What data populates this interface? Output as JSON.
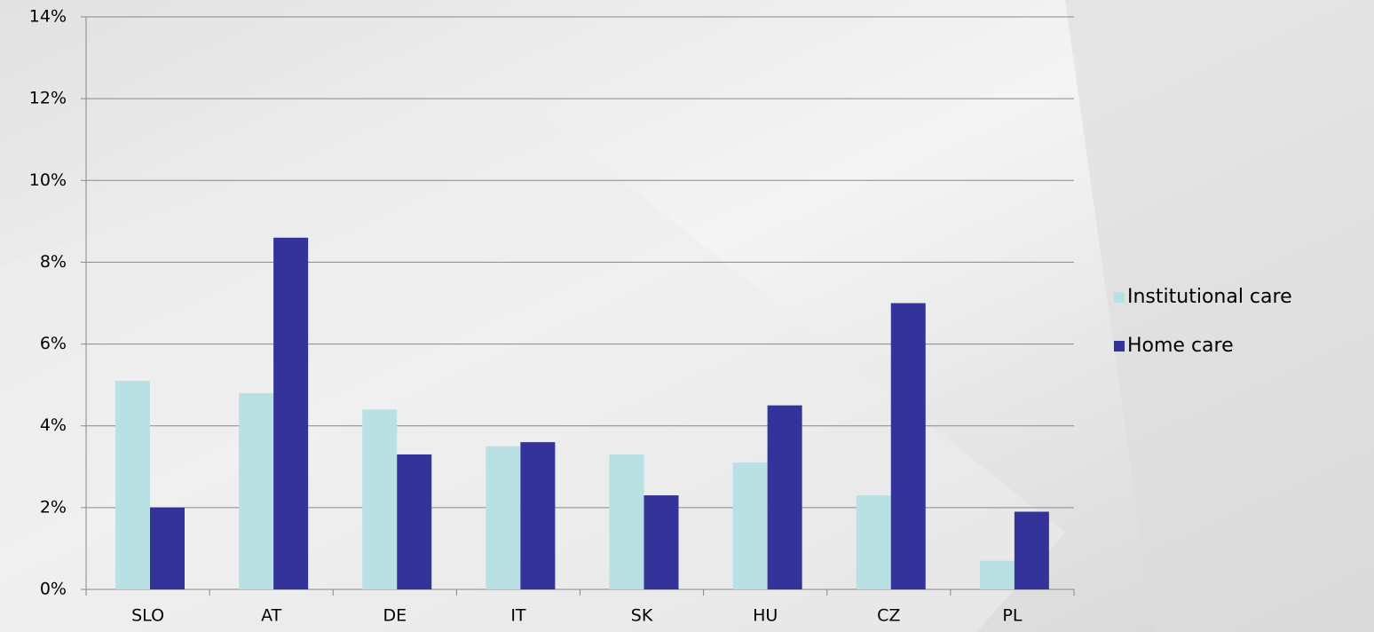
{
  "chart_data": {
    "type": "bar",
    "categories": [
      "SLO",
      "AT",
      "DE",
      "IT",
      "SK",
      "HU",
      "CZ",
      "PL"
    ],
    "series": [
      {
        "name": "Institutional care",
        "color": "#b9e0e3",
        "values": [
          5.1,
          4.8,
          4.4,
          3.5,
          3.3,
          3.1,
          2.3,
          0.7
        ]
      },
      {
        "name": "Home care",
        "color": "#343399",
        "values": [
          2.0,
          8.6,
          3.3,
          3.6,
          2.3,
          4.5,
          7.0,
          1.9
        ]
      }
    ],
    "ylim": [
      0,
      14
    ],
    "yticks": [
      {
        "value": 0,
        "label": "0%"
      },
      {
        "value": 2,
        "label": "2%"
      },
      {
        "value": 4,
        "label": "4%"
      },
      {
        "value": 6,
        "label": "6%"
      },
      {
        "value": 8,
        "label": "8%"
      },
      {
        "value": 10,
        "label": "10%"
      },
      {
        "value": 12,
        "label": "12%"
      },
      {
        "value": 14,
        "label": "14%"
      }
    ],
    "grid": true,
    "legend": "right"
  }
}
